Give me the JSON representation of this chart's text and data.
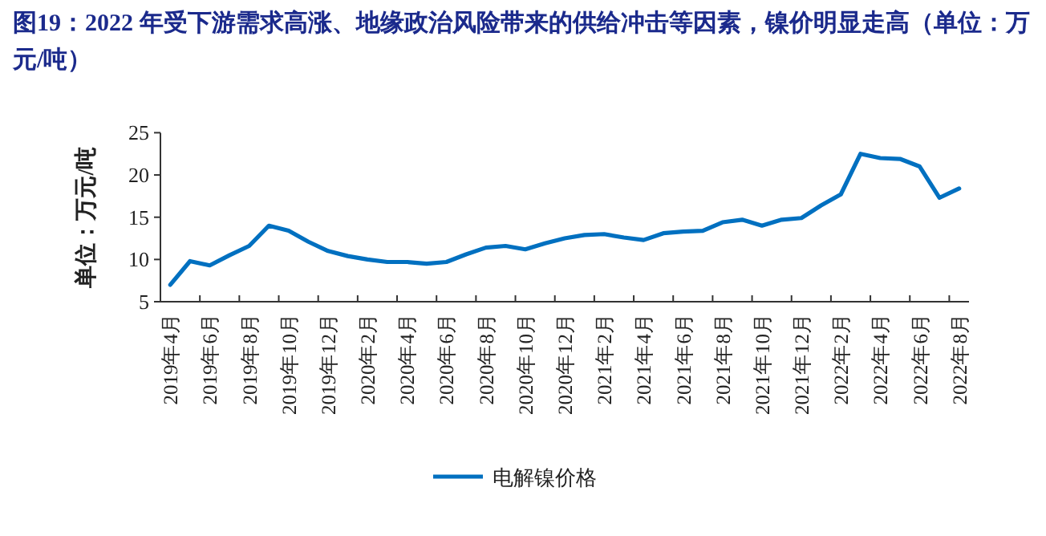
{
  "chart_data": {
    "type": "line",
    "title": "图19：2022 年受下游需求高涨、地缘政治风险带来的供给冲击等因素，镍价明显走高（单位：万元/吨）",
    "ylabel": "单位：万元/吨",
    "categories": [
      "2019年4月",
      null,
      "2019年6月",
      null,
      "2019年8月",
      null,
      "2019年10月",
      null,
      "2019年12月",
      null,
      "2020年2月",
      null,
      "2020年4月",
      null,
      "2020年6月",
      null,
      "2020年8月",
      null,
      "2020年10月",
      null,
      "2020年12月",
      null,
      "2021年2月",
      null,
      "2021年4月",
      null,
      "2021年6月",
      null,
      "2021年8月",
      null,
      "2021年10月",
      null,
      "2021年12月",
      null,
      "2022年2月",
      null,
      "2022年4月",
      null,
      "2022年6月",
      null,
      "2022年8月"
    ],
    "series": [
      {
        "name": "电解镍价格",
        "color": "#0070c0",
        "values": [
          7.0,
          9.8,
          9.3,
          10.5,
          11.6,
          14.0,
          13.4,
          12.1,
          11.0,
          10.4,
          10.0,
          9.7,
          9.7,
          9.5,
          9.7,
          10.6,
          11.4,
          11.6,
          11.2,
          11.9,
          12.5,
          12.9,
          13.0,
          12.6,
          12.3,
          13.1,
          13.3,
          13.4,
          14.4,
          14.7,
          14.0,
          14.7,
          14.9,
          16.4,
          17.7,
          22.5,
          22.0,
          21.9,
          21.0,
          17.3,
          18.4
        ]
      }
    ],
    "ylim": [
      5,
      25
    ],
    "yticks": [
      5,
      10,
      15,
      20,
      25
    ],
    "legend": "bottom"
  }
}
